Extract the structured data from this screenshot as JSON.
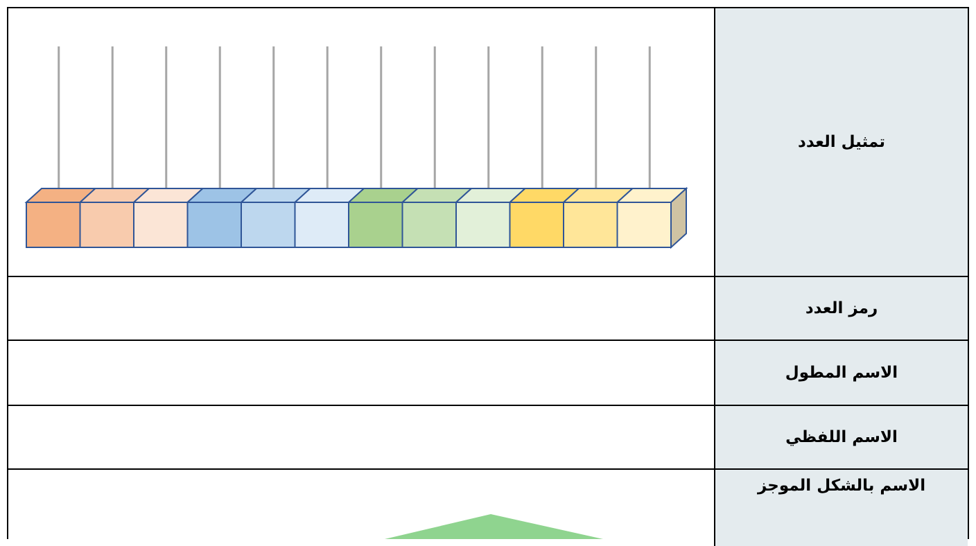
{
  "table": {
    "rows": [
      {
        "label": "تمثيل العدد"
      },
      {
        "label": "رمز العدد"
      },
      {
        "label": "الاسم المطول"
      },
      {
        "label": "الاسم اللفظي"
      },
      {
        "label": "الاسم بالشكل الموجز"
      }
    ]
  }
}
